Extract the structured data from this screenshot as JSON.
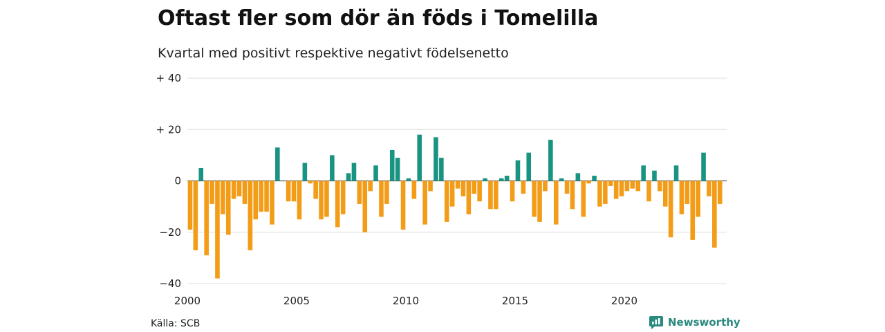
{
  "title": "Oftast fler som dör än föds i Tomelilla",
  "subtitle": "Kvartal med positivt respektive negativt födelsenetto",
  "source": "Källa: SCB",
  "brand": {
    "name": "Newsworthy",
    "icon": "newsworthy-logo-icon"
  },
  "colors": {
    "positive": "#1a9482",
    "negative": "#f39c17",
    "grid": "#dddddd",
    "brand": "#2a8a7e"
  },
  "chart_data": {
    "type": "bar",
    "title": "Oftast fler som dör än föds i Tomelilla",
    "subtitle": "Kvartal med positivt respektive negativt födelsenetto",
    "ylim": [
      -40,
      40
    ],
    "y_ticks": [
      40,
      20,
      0,
      -20,
      -40
    ],
    "y_tick_labels": [
      "+ 40",
      "+ 20",
      "0",
      "−20",
      "−40"
    ],
    "x_ticks": [
      2000,
      2005,
      2010,
      2015,
      2020
    ],
    "x_tick_labels": [
      "2000",
      "2005",
      "2010",
      "2015",
      "2020"
    ],
    "grid": true,
    "start": "2000 Q1",
    "series": [
      {
        "values": [
          -19,
          -27,
          5,
          -29,
          -9,
          -38,
          -13,
          -21,
          -7,
          -6,
          -9,
          -27,
          -15,
          -12,
          -12,
          -17,
          13,
          0,
          -8,
          -8,
          -15,
          7,
          -1,
          -7,
          -15,
          -14,
          10,
          -18,
          -13,
          3,
          7,
          -9,
          -20,
          -4,
          6,
          -14,
          -9,
          12,
          9,
          -19,
          1,
          -7,
          18,
          -17,
          -4,
          17,
          9,
          -16,
          -10,
          -3,
          -6,
          -13,
          -5,
          -8,
          1,
          -11,
          -11,
          1,
          2,
          -8,
          8,
          -5,
          11,
          -14,
          -16,
          -4,
          16,
          -17,
          1,
          -5,
          -11,
          3,
          -14,
          -1,
          2,
          -10,
          -9,
          -2,
          -7,
          -6,
          -4,
          -3,
          -4,
          6,
          -8,
          4,
          -4,
          -10,
          -22,
          6,
          -13,
          -9,
          -23,
          -14,
          11,
          -6,
          -26,
          -9
        ]
      }
    ]
  }
}
